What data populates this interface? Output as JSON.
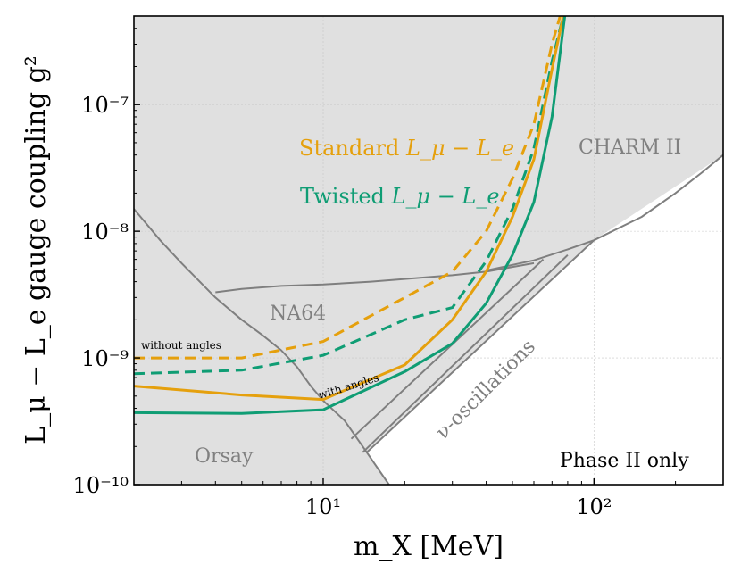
{
  "chart_data": {
    "type": "line",
    "title": "",
    "xlabel": "m_X [MeV]",
    "ylabel": "L_μ − L_e gauge coupling g²",
    "xscale": "log",
    "yscale": "log",
    "xlim": [
      2,
      300
    ],
    "ylim": [
      1e-10,
      5e-07
    ],
    "x_ticks": [
      {
        "value": 10,
        "label": "10¹"
      },
      {
        "value": 100,
        "label": "10²"
      }
    ],
    "y_ticks": [
      {
        "value": 1e-10,
        "label": "10⁻¹⁰"
      },
      {
        "value": 1e-09,
        "label": "10⁻⁹"
      },
      {
        "value": 1e-08,
        "label": "10⁻⁸"
      },
      {
        "value": 1e-07,
        "label": "10⁻⁷"
      }
    ],
    "grid": true,
    "colors": {
      "standard": "#E5A00D",
      "twisted": "#0F9D74",
      "bound": "#7F7F7F",
      "excluded_fill": "#E0E0E0"
    },
    "excluded_region": [
      [
        2,
        5e-07
      ],
      [
        300,
        5e-07
      ],
      [
        300,
        4e-08
      ],
      [
        100,
        8.5e-09
      ],
      [
        14.5,
        1.8e-10
      ],
      [
        17.5,
        1e-10
      ],
      [
        2,
        1e-10
      ]
    ],
    "bounds": [
      {
        "name": "Orsay",
        "points": [
          [
            2,
            1.5e-08
          ],
          [
            2.5,
            8.5e-09
          ],
          [
            3,
            5.6e-09
          ],
          [
            4,
            3e-09
          ],
          [
            5,
            2e-09
          ],
          [
            6,
            1.5e-09
          ],
          [
            7,
            1.15e-09
          ],
          [
            8,
            8.5e-10
          ],
          [
            9,
            6e-10
          ],
          [
            10,
            4.6e-10
          ],
          [
            12,
            3.2e-10
          ],
          [
            14,
            2e-10
          ],
          [
            17.5,
            1e-10
          ]
        ]
      },
      {
        "name": "NA64",
        "points": [
          [
            4,
            3.3e-09
          ],
          [
            5,
            3.5e-09
          ],
          [
            7,
            3.7e-09
          ],
          [
            10,
            3.8e-09
          ],
          [
            15,
            4e-09
          ],
          [
            20,
            4.2e-09
          ],
          [
            30,
            4.5e-09
          ],
          [
            40,
            4.8e-09
          ],
          [
            60,
            5.6e-09
          ]
        ]
      },
      {
        "name": "CHARM II",
        "points": [
          [
            40,
            4.9e-09
          ],
          [
            60,
            5.9e-09
          ],
          [
            80,
            7.2e-09
          ],
          [
            100,
            8.5e-09
          ],
          [
            150,
            1.3e-08
          ],
          [
            200,
            2e-08
          ],
          [
            250,
            2.9e-08
          ],
          [
            300,
            4e-08
          ]
        ]
      },
      {
        "name": "ν-oscillations",
        "points": [
          [
            12.7,
            2.3e-10
          ],
          [
            65,
            6e-09
          ]
        ]
      },
      {
        "name": "ν-oscillations",
        "points": [
          [
            14,
            1.8e-10
          ],
          [
            80,
            6.5e-09
          ]
        ]
      },
      {
        "name": "phase-boundary",
        "points": [
          [
            14.5,
            1.8e-10
          ],
          [
            100,
            8.5e-09
          ]
        ]
      }
    ],
    "series": [
      {
        "name": "Standard without angles",
        "color": "#E5A00D",
        "dash": true,
        "points": [
          [
            2,
            1e-09
          ],
          [
            5,
            1e-09
          ],
          [
            10,
            1.35e-09
          ],
          [
            20,
            3e-09
          ],
          [
            30,
            4.8e-09
          ],
          [
            40,
            1e-08
          ],
          [
            50,
            2.6e-08
          ],
          [
            60,
            7e-08
          ],
          [
            70,
            3e-07
          ],
          [
            75,
            5e-07
          ]
        ]
      },
      {
        "name": "Twisted without angles",
        "color": "#0F9D74",
        "dash": true,
        "points": [
          [
            2,
            7.5e-10
          ],
          [
            5,
            8e-10
          ],
          [
            10,
            1.05e-09
          ],
          [
            20,
            2e-09
          ],
          [
            30,
            2.5e-09
          ],
          [
            40,
            5.8e-09
          ],
          [
            50,
            1.5e-08
          ],
          [
            60,
            4.5e-08
          ],
          [
            70,
            2.2e-07
          ],
          [
            77,
            5e-07
          ]
        ]
      },
      {
        "name": "Standard with angles",
        "color": "#E5A00D",
        "dash": false,
        "points": [
          [
            2,
            6e-10
          ],
          [
            5,
            5.1e-10
          ],
          [
            10,
            4.7e-10
          ],
          [
            20,
            8.8e-10
          ],
          [
            30,
            2e-09
          ],
          [
            40,
            4.8e-09
          ],
          [
            50,
            1.3e-08
          ],
          [
            60,
            3.7e-08
          ],
          [
            70,
            1.9e-07
          ],
          [
            77,
            5e-07
          ]
        ]
      },
      {
        "name": "Twisted with angles",
        "color": "#0F9D74",
        "dash": false,
        "points": [
          [
            2,
            3.7e-10
          ],
          [
            5,
            3.65e-10
          ],
          [
            10,
            3.9e-10
          ],
          [
            20,
            7.8e-10
          ],
          [
            30,
            1.3e-09
          ],
          [
            40,
            2.7e-09
          ],
          [
            50,
            6.5e-09
          ],
          [
            60,
            1.7e-08
          ],
          [
            70,
            8e-08
          ],
          [
            78,
            5e-07
          ]
        ]
      }
    ],
    "annotations": {
      "orsay": "Orsay",
      "na64": "NA64",
      "charm": "CHARM II",
      "nu_osc": "ν-oscillations",
      "phase2": "Phase II only",
      "without_angles": "without angles",
      "with_angles": "with angles"
    },
    "legend": {
      "standard_prefix": "Standard ",
      "twisted_prefix": "Twisted ",
      "math_label": "L_μ − L_e"
    }
  }
}
